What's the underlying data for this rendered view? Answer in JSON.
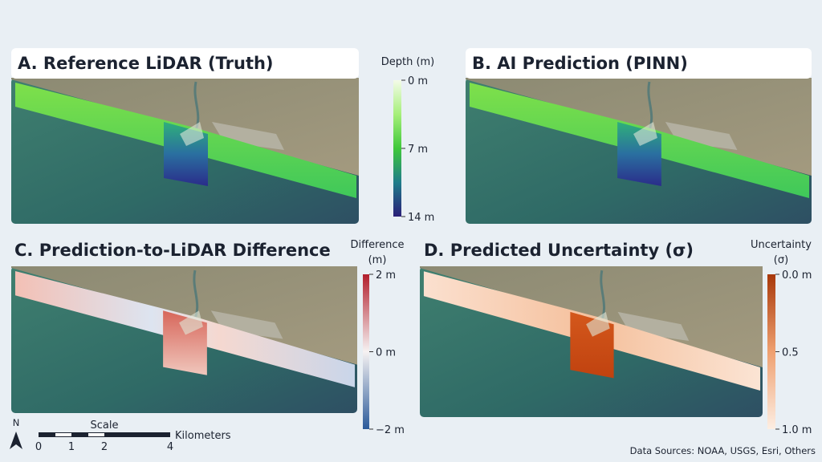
{
  "panels": [
    {
      "title": "A. Reference LiDAR (Truth)",
      "legend": {
        "title": [
          "Depth (m)"
        ],
        "ticks": [
          "0 m",
          "7 m",
          "14 m"
        ]
      }
    },
    {
      "title": "B. AI Prediction (PINN)",
      "legend": null
    },
    {
      "title": "C. Prediction-to-LiDAR Difference",
      "legend": {
        "title": [
          "Difference",
          "(m)"
        ],
        "ticks": [
          "2 m",
          "0 m",
          "−2 m"
        ]
      }
    },
    {
      "title": "D. Predicted Uncertainty (σ)",
      "legend": {
        "title": [
          "Uncertainty",
          "(σ)"
        ],
        "ticks": [
          "0.0 m",
          "0.5",
          "1.0 m"
        ]
      }
    }
  ],
  "scale_bar": {
    "north": "N",
    "title": "Scale",
    "unit": "Kilometers",
    "ticks": [
      "0",
      "1",
      "2",
      "4"
    ]
  },
  "footer": "Data Sources: NOAA, USGS, Esri, Others"
}
